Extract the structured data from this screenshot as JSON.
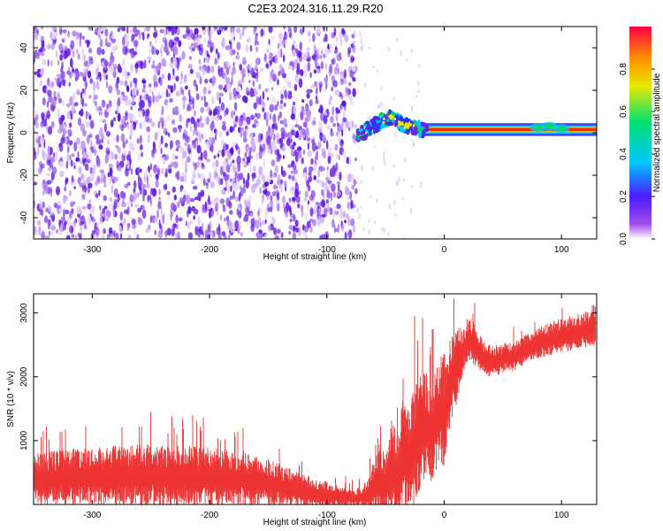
{
  "title": "C2E3.2024.316.11.29.R20",
  "chart_data": [
    {
      "type": "heatmap",
      "xlabel": "Height of straight line (km)",
      "ylabel": "Frequency (Hz)",
      "xlim": [
        -350,
        130
      ],
      "ylim": [
        -50,
        50
      ],
      "x_ticks": [
        -300,
        -200,
        -100,
        0,
        100
      ],
      "y_ticks": [
        -40,
        -20,
        0,
        20,
        40
      ],
      "noise_region_x": [
        -350,
        -75
      ],
      "signal_track": {
        "x": [
          -75,
          -65,
          -55,
          -45,
          -35,
          -25,
          -15,
          0,
          20,
          40,
          60,
          80,
          90,
          100,
          130
        ],
        "y": [
          -3,
          2,
          5,
          7,
          4,
          2,
          1,
          1,
          1.5,
          1.5,
          1.5,
          2,
          2.5,
          2,
          2
        ]
      },
      "colorbar": {
        "label": "Normalized spectral amplitude",
        "range": [
          0,
          1
        ],
        "ticks": [
          0.0,
          0.2,
          0.4,
          0.6,
          0.8
        ],
        "colors": [
          "#ffffff",
          "#a24de8",
          "#4a1bff",
          "#00c8ff",
          "#00e070",
          "#e8e800",
          "#ff9000",
          "#ff0044"
        ]
      },
      "grid": false
    },
    {
      "type": "line",
      "xlabel": "Height of straight line (km)",
      "ylabel": "SNR (10 * v/v)",
      "xlim": [
        -350,
        130
      ],
      "ylim": [
        0,
        3300
      ],
      "x_ticks": [
        -300,
        -200,
        -100,
        0,
        100
      ],
      "y_ticks": [
        1000,
        2000,
        3000
      ],
      "series": [
        {
          "color": "#ee3333",
          "x": [
            -350,
            -320,
            -290,
            -260,
            -230,
            -200,
            -170,
            -150,
            -130,
            -110,
            -90,
            -75,
            -65,
            -55,
            -50,
            -45,
            -40,
            -35,
            -30,
            -25,
            -20,
            -15,
            -10,
            -5,
            0,
            5,
            10,
            15,
            20,
            25,
            30,
            35,
            40,
            50,
            60,
            70,
            80,
            90,
            100,
            110,
            120,
            130
          ],
          "y": [
            420,
            450,
            470,
            480,
            470,
            450,
            420,
            360,
            270,
            190,
            140,
            110,
            150,
            420,
            300,
            600,
            500,
            820,
            700,
            1050,
            1250,
            1300,
            1150,
            1500,
            1500,
            1950,
            2150,
            2400,
            2600,
            2550,
            2400,
            2300,
            2250,
            2300,
            2330,
            2450,
            2550,
            2600,
            2650,
            2700,
            2750,
            2850
          ],
          "band": [
            350,
            380,
            400,
            420,
            420,
            400,
            380,
            320,
            260,
            200,
            150,
            120,
            200,
            500,
            400,
            700,
            600,
            800,
            700,
            900,
            800,
            700,
            700,
            700,
            800,
            600,
            500,
            400,
            300,
            300,
            250,
            220,
            220,
            200,
            200,
            200,
            220,
            230,
            240,
            250,
            250,
            300
          ]
        }
      ],
      "grid": false
    }
  ]
}
